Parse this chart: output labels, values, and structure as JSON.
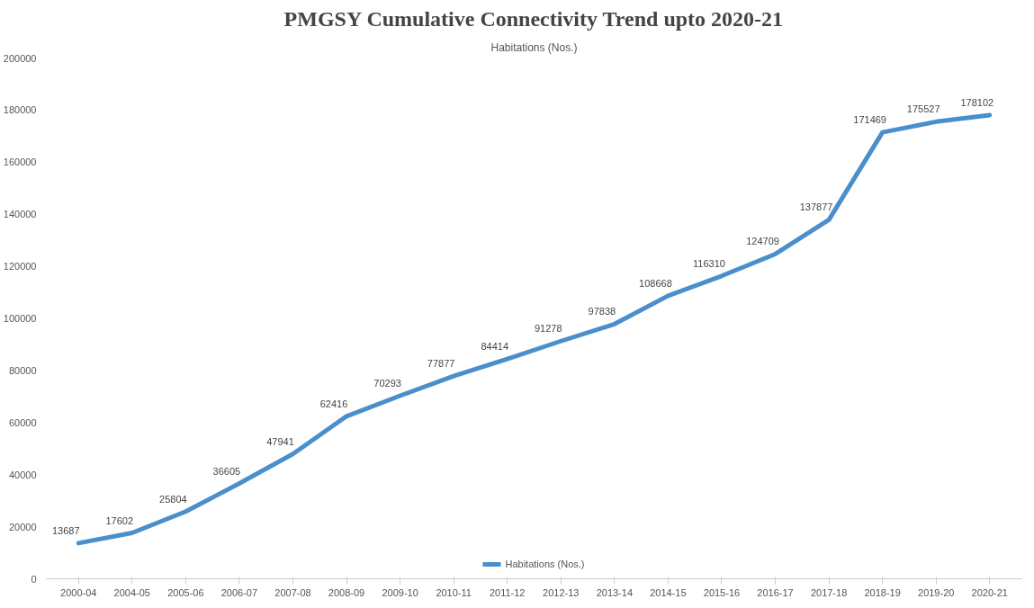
{
  "chart_data": {
    "type": "line",
    "title": "PMGSY Cumulative Connectivity Trend upto 2020-21",
    "subtitle": "Habitations (Nos.)",
    "categories": [
      "2000-04",
      "2004-05",
      "2005-06",
      "2006-07",
      "2007-08",
      "2008-09",
      "2009-10",
      "2010-11",
      "2011-12",
      "2012-13",
      "2013-14",
      "2014-15",
      "2015-16",
      "2016-17",
      "2017-18",
      "2018-19",
      "2019-20",
      "2020-21"
    ],
    "series": [
      {
        "name": "Habitations (Nos.)",
        "color": "#4a8fcb",
        "values": [
          13687,
          17602,
          25804,
          36605,
          47941,
          62416,
          70293,
          77877,
          84414,
          91278,
          97838,
          108668,
          116310,
          124709,
          137877,
          171469,
          175527,
          178102
        ]
      }
    ],
    "ylim": [
      0,
      200000
    ],
    "yticks": [
      0,
      20000,
      40000,
      60000,
      80000,
      100000,
      120000,
      140000,
      160000,
      180000,
      200000
    ],
    "data_labels": true,
    "grid": false,
    "legend": "bottom",
    "marker": "none",
    "line_style": "solid"
  }
}
